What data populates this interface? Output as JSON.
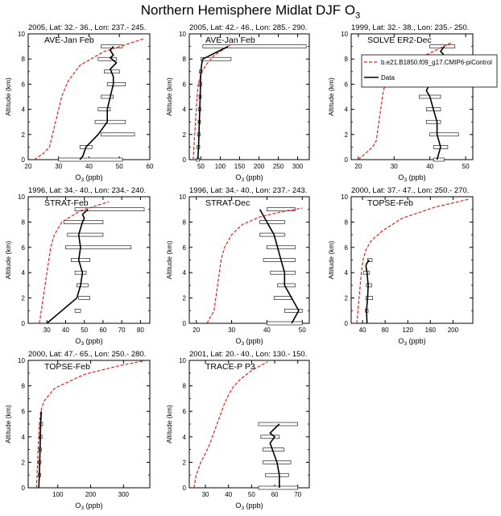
{
  "figure": {
    "title_main": "Northern Hemisphere Midlat DJF O",
    "title_sub": "3"
  },
  "shared": {
    "ylabel": "Altitude (km)",
    "xlabel_main": "O",
    "xlabel_sub": "3",
    "xlabel_unit": " (ppb)",
    "model_color": "#e8201c",
    "obs_color": "#000000"
  },
  "legend": {
    "model_label": "b.e21.B1850.f09_g17.CMIP6-piControl",
    "obs_label": "Data"
  },
  "chart_data": [
    {
      "type": "line",
      "header": "2005, Lat: 32.- 36., Lon: 237.- 245.",
      "campaign": "AVE-Jan Feb",
      "xlim": [
        20,
        60
      ],
      "xticks": [
        20,
        30,
        40,
        50,
        60
      ],
      "ylim": [
        0,
        10
      ],
      "yticks": [
        0,
        2,
        4,
        6,
        8,
        10
      ],
      "model": {
        "x": [
          22,
          25,
          27,
          28,
          29,
          30,
          31,
          33,
          37,
          45,
          58
        ],
        "y": [
          0,
          0.5,
          1,
          2,
          3,
          4,
          5,
          6.2,
          7.5,
          8.6,
          9.6
        ]
      },
      "obs": {
        "x": [
          37,
          38,
          39,
          43,
          46,
          46,
          47,
          48,
          48,
          47,
          49,
          47,
          48,
          47,
          48
        ],
        "y": [
          0,
          0.3,
          1,
          2,
          3,
          4,
          5,
          6,
          6.6,
          7.2,
          7.7,
          8.1,
          8.3,
          8.7,
          9
        ],
        "bars": [
          {
            "alt": 0,
            "lo": 30,
            "hi": 51
          },
          {
            "alt": 1,
            "lo": 37,
            "hi": 41
          },
          {
            "alt": 2,
            "lo": 44,
            "hi": 55
          },
          {
            "alt": 3,
            "lo": 42,
            "hi": 52
          },
          {
            "alt": 4,
            "lo": 43,
            "hi": 47
          },
          {
            "alt": 5,
            "lo": 44,
            "hi": 48
          },
          {
            "alt": 6,
            "lo": 46,
            "hi": 52
          },
          {
            "alt": 7,
            "lo": 45,
            "hi": 50
          },
          {
            "alt": 8,
            "lo": 43,
            "hi": 49
          },
          {
            "alt": 9,
            "lo": 44,
            "hi": 51
          }
        ]
      }
    },
    {
      "type": "line",
      "header": "2005, Lat: 42.- 46., Lon: 285.- 290.",
      "campaign": "AVE-Jan Feb",
      "xlim": [
        20,
        330
      ],
      "xticks": [
        50,
        100,
        150,
        200,
        250,
        300
      ],
      "ylim": [
        0,
        10
      ],
      "yticks": [
        0,
        2,
        4,
        6,
        8,
        10
      ],
      "model": {
        "x": [
          30,
          32,
          34,
          36,
          38,
          40,
          43,
          47,
          53,
          65,
          85,
          125
        ],
        "y": [
          0,
          1,
          2,
          3,
          4,
          5,
          6,
          6.5,
          7,
          7.6,
          8.3,
          9.1
        ]
      },
      "obs": {
        "x": [
          42,
          44,
          45,
          46,
          47,
          48,
          49,
          50,
          52,
          55,
          120
        ],
        "y": [
          0,
          1,
          2,
          3,
          4,
          5,
          6,
          7,
          7.6,
          8,
          9
        ],
        "bars": [
          {
            "alt": 0,
            "lo": 38,
            "hi": 46
          },
          {
            "alt": 1,
            "lo": 40,
            "hi": 47
          },
          {
            "alt": 2,
            "lo": 41,
            "hi": 48
          },
          {
            "alt": 3,
            "lo": 43,
            "hi": 49
          },
          {
            "alt": 4,
            "lo": 44,
            "hi": 50
          },
          {
            "alt": 5,
            "lo": 45,
            "hi": 51
          },
          {
            "alt": 6,
            "lo": 45,
            "hi": 52
          },
          {
            "alt": 7,
            "lo": 46,
            "hi": 53
          },
          {
            "alt": 8,
            "lo": 50,
            "hi": 128
          },
          {
            "alt": 9,
            "lo": 55,
            "hi": 322
          }
        ]
      }
    },
    {
      "type": "line",
      "header": "1999, Lat: 32.- 38., Lon: 235.- 250.",
      "campaign": "SOLVE ER2-Dec",
      "xlim": [
        18,
        52
      ],
      "xticks": [
        20,
        30,
        40,
        50
      ],
      "ylim": [
        0,
        10
      ],
      "yticks": [
        0,
        2,
        4,
        6,
        8,
        10
      ],
      "show_legend": true,
      "model": {
        "x": [
          20,
          22,
          24,
          25,
          25.5,
          26,
          26.5,
          27,
          28,
          30,
          35,
          41,
          46
        ],
        "y": [
          0,
          0.5,
          1,
          1.5,
          2.5,
          3.5,
          4.5,
          5.5,
          6.3,
          7,
          7.8,
          8.6,
          9.3
        ]
      },
      "obs": {
        "x": [
          42,
          43,
          42,
          42,
          41,
          40,
          39,
          40,
          41,
          43,
          45,
          43,
          44
        ],
        "y": [
          0,
          1,
          2,
          3,
          4,
          5,
          5.5,
          6,
          6.5,
          7,
          8,
          8.6,
          9
        ],
        "bars": [
          {
            "alt": 0,
            "lo": 41,
            "hi": 44
          },
          {
            "alt": 1,
            "lo": 41,
            "hi": 45
          },
          {
            "alt": 2,
            "lo": 40,
            "hi": 48
          },
          {
            "alt": 3,
            "lo": 39,
            "hi": 43
          },
          {
            "alt": 4,
            "lo": 39,
            "hi": 43
          },
          {
            "alt": 5,
            "lo": 37,
            "hi": 43
          },
          {
            "alt": 6,
            "lo": 38,
            "hi": 45
          },
          {
            "alt": 7,
            "lo": 37,
            "hi": 49
          },
          {
            "alt": 8,
            "lo": 38,
            "hi": 48
          },
          {
            "alt": 9,
            "lo": 40,
            "hi": 47
          }
        ]
      }
    },
    {
      "type": "line",
      "header": "1996, Lat: 34.- 40., Lon: 234.- 240.",
      "campaign": "STRAT-Feb",
      "xlim": [
        20,
        85
      ],
      "xticks": [
        30,
        40,
        50,
        60,
        70,
        80
      ],
      "ylim": [
        0,
        10
      ],
      "yticks": [
        0,
        2,
        4,
        6,
        8,
        10
      ],
      "model": {
        "x": [
          26,
          27,
          28,
          29,
          30,
          31,
          32,
          34,
          38,
          48,
          63
        ],
        "y": [
          0,
          1,
          2,
          3,
          4,
          5,
          6,
          7,
          8,
          8.9,
          9.6
        ]
      },
      "obs": {
        "x": [
          30,
          38,
          46,
          48,
          49,
          47,
          48,
          47,
          48,
          49,
          50,
          49,
          52
        ],
        "y": [
          0,
          1,
          2,
          3,
          4,
          5,
          6,
          7,
          7.5,
          8,
          8.3,
          8.6,
          9
        ],
        "bars": [
          {
            "alt": 1,
            "lo": 45,
            "hi": 48
          },
          {
            "alt": 2,
            "lo": 47,
            "hi": 53
          },
          {
            "alt": 3,
            "lo": 46,
            "hi": 52
          },
          {
            "alt": 4,
            "lo": 45,
            "hi": 51
          },
          {
            "alt": 5,
            "lo": 43,
            "hi": 53
          },
          {
            "alt": 6,
            "lo": 40,
            "hi": 75
          },
          {
            "alt": 7,
            "lo": 41,
            "hi": 60
          },
          {
            "alt": 8,
            "lo": 39,
            "hi": 60
          },
          {
            "alt": 9,
            "lo": 45,
            "hi": 82
          }
        ]
      }
    },
    {
      "type": "line",
      "header": "1996, Lat: 34.- 40., Lon: 237.- 243.",
      "campaign": "STRAT-Dec",
      "xlim": [
        18,
        52
      ],
      "xticks": [
        20,
        30,
        40,
        50
      ],
      "ylim": [
        0,
        10
      ],
      "yticks": [
        0,
        2,
        4,
        6,
        8,
        10
      ],
      "model": {
        "x": [
          23,
          24,
          25,
          25.5,
          26,
          26.5,
          27,
          28,
          30,
          33,
          38,
          44,
          50
        ],
        "y": [
          0,
          0.5,
          1,
          2,
          3,
          4,
          5,
          6,
          7,
          7.8,
          8.4,
          8.8,
          9.1
        ]
      },
      "obs": {
        "x": [
          47,
          48,
          49,
          47,
          45,
          45,
          44,
          43,
          42,
          41,
          40,
          39,
          38
        ],
        "y": [
          0,
          0.5,
          1,
          2,
          3,
          4,
          5,
          6,
          7,
          7.5,
          8,
          8.5,
          9
        ],
        "bars": [
          {
            "alt": 0,
            "lo": 40,
            "hi": 50
          },
          {
            "alt": 1,
            "lo": 45,
            "hi": 50
          },
          {
            "alt": 2,
            "lo": 42,
            "hi": 47
          },
          {
            "alt": 3,
            "lo": 43,
            "hi": 48
          },
          {
            "alt": 4,
            "lo": 41,
            "hi": 48
          },
          {
            "alt": 5,
            "lo": 39,
            "hi": 48
          },
          {
            "alt": 6,
            "lo": 40,
            "hi": 48
          },
          {
            "alt": 7,
            "lo": 38,
            "hi": 45
          },
          {
            "alt": 8,
            "lo": 38,
            "hi": 45
          },
          {
            "alt": 9,
            "lo": 40,
            "hi": 48
          }
        ]
      }
    },
    {
      "type": "line",
      "header": "2000, Lat: 37.- 47., Lon: 250.- 270.",
      "campaign": "TOPSE-Feb",
      "xlim": [
        20,
        235
      ],
      "xticks": [
        40,
        80,
        120,
        160,
        200
      ],
      "ylim": [
        0,
        10
      ],
      "yticks": [
        0,
        2,
        4,
        6,
        8,
        10
      ],
      "model": {
        "x": [
          30,
          32,
          34,
          36,
          38,
          41,
          46,
          55,
          75,
          110,
          170,
          228
        ],
        "y": [
          0,
          1,
          2,
          3,
          4,
          5,
          5.8,
          6.5,
          7.3,
          8.3,
          9.2,
          9.8
        ]
      },
      "obs": {
        "x": [
          48,
          47,
          49,
          50,
          48,
          46,
          47,
          52
        ],
        "y": [
          0,
          1,
          2,
          3,
          4,
          4.5,
          4.7,
          5
        ],
        "bars": [
          {
            "alt": 1,
            "lo": 45,
            "hi": 50
          },
          {
            "alt": 2,
            "lo": 46,
            "hi": 58
          },
          {
            "alt": 3,
            "lo": 47,
            "hi": 56
          },
          {
            "alt": 4,
            "lo": 42,
            "hi": 52
          },
          {
            "alt": 5,
            "lo": 49,
            "hi": 57
          }
        ]
      }
    },
    {
      "type": "line",
      "header": "2000, Lat: 47.- 65., Lon: 250.- 280.",
      "campaign": "TOPSE-Feb",
      "xlim": [
        10,
        380
      ],
      "xticks": [
        100,
        200,
        300
      ],
      "ylim": [
        0,
        10
      ],
      "yticks": [
        0,
        2,
        4,
        6,
        8,
        10
      ],
      "model": {
        "x": [
          35,
          37,
          39,
          40,
          42,
          44,
          48,
          58,
          90,
          180,
          290,
          370
        ],
        "y": [
          0,
          1,
          2,
          3,
          4,
          5,
          6,
          6.8,
          7.8,
          8.9,
          9.6,
          10
        ]
      },
      "obs": {
        "x": [
          42,
          44,
          45,
          46,
          47,
          48,
          50
        ],
        "y": [
          0,
          1,
          2,
          3,
          4,
          5,
          6
        ],
        "bars": [
          {
            "alt": 1,
            "lo": 41,
            "hi": 48
          },
          {
            "alt": 2,
            "lo": 41,
            "hi": 49
          },
          {
            "alt": 3,
            "lo": 42,
            "hi": 50
          },
          {
            "alt": 4,
            "lo": 44,
            "hi": 52
          },
          {
            "alt": 5,
            "lo": 45,
            "hi": 54
          }
        ]
      }
    },
    {
      "type": "line",
      "header": "2001, Lat: 20.- 40., Lon: 130.- 150.",
      "campaign": "TRACE-P P3",
      "xlim": [
        23,
        75
      ],
      "xticks": [
        30,
        40,
        50,
        60,
        70
      ],
      "ylim": [
        0,
        10
      ],
      "yticks": [
        0,
        2,
        4,
        6,
        8,
        10
      ],
      "model": {
        "x": [
          25,
          26,
          28,
          30,
          32,
          34,
          36,
          38,
          40,
          42,
          45,
          50,
          57
        ],
        "y": [
          0,
          1,
          2,
          2.7,
          3.5,
          4.5,
          5.5,
          6.5,
          7.3,
          7.9,
          8.5,
          9.2,
          9.9
        ]
      },
      "obs": {
        "x": [
          62,
          62,
          61,
          60,
          59,
          58,
          60,
          58,
          62
        ],
        "y": [
          0,
          1,
          2,
          2.5,
          3,
          3.5,
          4,
          4.3,
          5
        ],
        "bars": [
          {
            "alt": 0,
            "lo": 53,
            "hi": 70
          },
          {
            "alt": 1,
            "lo": 56,
            "hi": 66
          },
          {
            "alt": 2,
            "lo": 55,
            "hi": 67
          },
          {
            "alt": 3,
            "lo": 55,
            "hi": 64
          },
          {
            "alt": 4,
            "lo": 54,
            "hi": 62
          },
          {
            "alt": 5,
            "lo": 53,
            "hi": 70
          }
        ]
      }
    }
  ]
}
